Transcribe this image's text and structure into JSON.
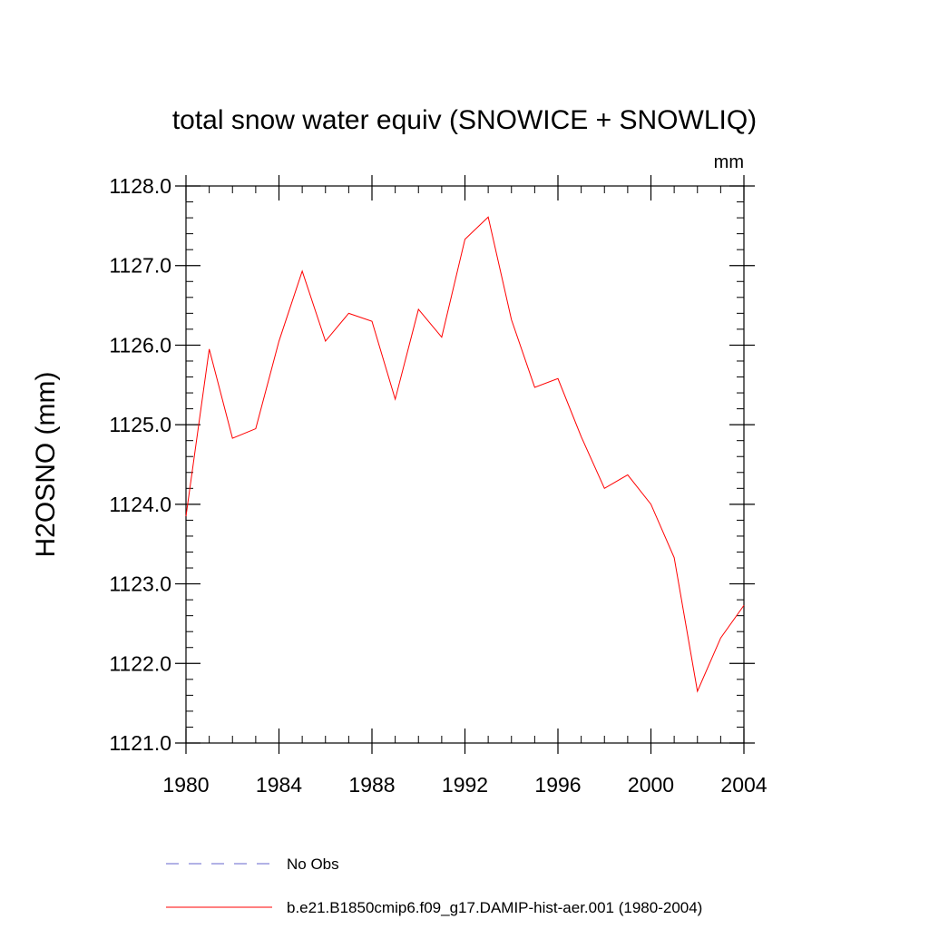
{
  "chart_data": {
    "type": "line",
    "title": "total snow water equiv (SNOWICE + SNOWLIQ)",
    "units": "mm",
    "ylabel": "H2OSNO  (mm)",
    "xlabel": "",
    "xlim": [
      1980,
      2004
    ],
    "ylim": [
      1121.0,
      1128.0
    ],
    "x_ticks": [
      1980,
      1984,
      1988,
      1992,
      1996,
      2000,
      2004
    ],
    "y_ticks": [
      "1121.0",
      "1122.0",
      "1123.0",
      "1124.0",
      "1125.0",
      "1126.0",
      "1127.0",
      "1128.0"
    ],
    "grid": false,
    "legend_position": "bottom",
    "series": [
      {
        "name": "b.e21.B1850cmip6.f09_g17.DAMIP-hist-aer.001 (1980-2004)",
        "color": "#ff0000",
        "style": "solid",
        "x": [
          1980,
          1981,
          1982,
          1983,
          1984,
          1985,
          1986,
          1987,
          1988,
          1989,
          1990,
          1991,
          1992,
          1993,
          1994,
          1995,
          1996,
          1997,
          1998,
          1999,
          2000,
          2001,
          2002,
          2003,
          2004
        ],
        "values": [
          1123.85,
          1125.95,
          1124.83,
          1124.95,
          1126.05,
          1126.93,
          1126.05,
          1126.4,
          1126.3,
          1125.32,
          1126.45,
          1126.1,
          1127.33,
          1127.61,
          1126.32,
          1125.47,
          1125.58,
          1124.85,
          1124.2,
          1124.37,
          1124.0,
          1123.33,
          1121.65,
          1122.32,
          1122.73
        ]
      }
    ],
    "legend": [
      {
        "label": "No Obs",
        "color": "#6666cc",
        "style": "dashed"
      },
      {
        "label": "b.e21.B1850cmip6.f09_g17.DAMIP-hist-aer.001 (1980-2004)",
        "color": "#ff0000",
        "style": "solid"
      }
    ]
  }
}
